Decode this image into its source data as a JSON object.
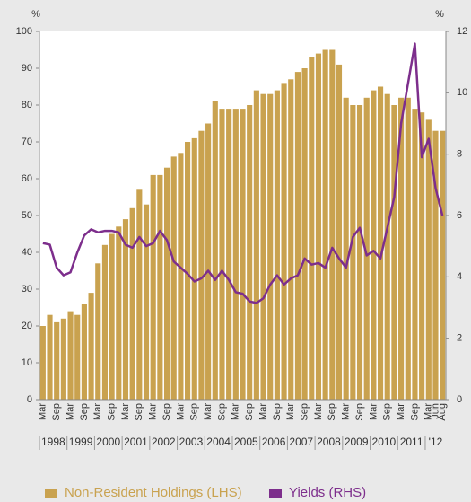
{
  "chart_data": {
    "type": "bar",
    "ylabel": "%",
    "y2label": "%",
    "categories": [
      "Mar",
      null,
      "Sep",
      null,
      "Mar",
      null,
      "Sep",
      null,
      "Mar",
      null,
      "Sep",
      null,
      "Mar",
      null,
      "Sep",
      null,
      "Mar",
      null,
      "Sep",
      null,
      "Mar",
      null,
      "Sep",
      null,
      "Mar",
      null,
      "Sep",
      null,
      "Mar",
      null,
      "Sep",
      null,
      "Mar",
      null,
      "Sep",
      null,
      "Mar",
      null,
      "Sep",
      null,
      "Mar",
      null,
      "Sep",
      null,
      "Mar",
      null,
      "Sep",
      null,
      "Mar",
      null,
      "Sep",
      null,
      "Mar",
      null,
      "Sep",
      null,
      "Mar",
      "Jun",
      "Aug"
    ],
    "years": [
      "1998",
      "1999",
      "2000",
      "2001",
      "2002",
      "2003",
      "2004",
      "2005",
      "2006",
      "2007",
      "2008",
      "2009",
      "2010",
      "2011",
      "'12"
    ],
    "series": [
      {
        "name": "Non-Resident Holdings (LHS)",
        "type": "bar",
        "color": "#c9a24f",
        "values": [
          20,
          23,
          21,
          22,
          24,
          23,
          26,
          29,
          37,
          42,
          45,
          47,
          49,
          52,
          57,
          53,
          61,
          61,
          63,
          66,
          67,
          70,
          71,
          73,
          75,
          81,
          79,
          79,
          79,
          79,
          80,
          84,
          83,
          83,
          84,
          86,
          87,
          89,
          90,
          93,
          94,
          95,
          95,
          91,
          82,
          80,
          80,
          82,
          84,
          85,
          83,
          80,
          82,
          82,
          79,
          78,
          76,
          73,
          73
        ]
      },
      {
        "name": "Yields (RHS)",
        "type": "line",
        "axis": "y2",
        "color": "#7d2e8c",
        "values": [
          5.1,
          5.05,
          4.3,
          4.05,
          4.15,
          4.8,
          5.35,
          5.55,
          5.45,
          5.5,
          5.5,
          5.45,
          5.05,
          4.95,
          5.3,
          5.0,
          5.1,
          5.5,
          5.2,
          4.5,
          4.3,
          4.1,
          3.85,
          3.95,
          4.2,
          3.9,
          4.2,
          3.9,
          3.5,
          3.45,
          3.2,
          3.15,
          3.3,
          3.75,
          4.05,
          3.75,
          3.95,
          4.05,
          4.6,
          4.4,
          4.45,
          4.3,
          4.95,
          4.6,
          4.3,
          5.3,
          5.6,
          4.7,
          4.85,
          4.6,
          5.6,
          6.6,
          9.0,
          10.3,
          11.6,
          7.9,
          8.5,
          6.9,
          6.0
        ]
      }
    ],
    "ylim": [
      0,
      100
    ],
    "yticks": [
      0,
      10,
      20,
      30,
      40,
      50,
      60,
      70,
      80,
      90,
      100
    ],
    "y2lim": [
      0,
      12
    ],
    "y2ticks": [
      0,
      2,
      4,
      6,
      8,
      10,
      12
    ],
    "legend": "bottom"
  }
}
